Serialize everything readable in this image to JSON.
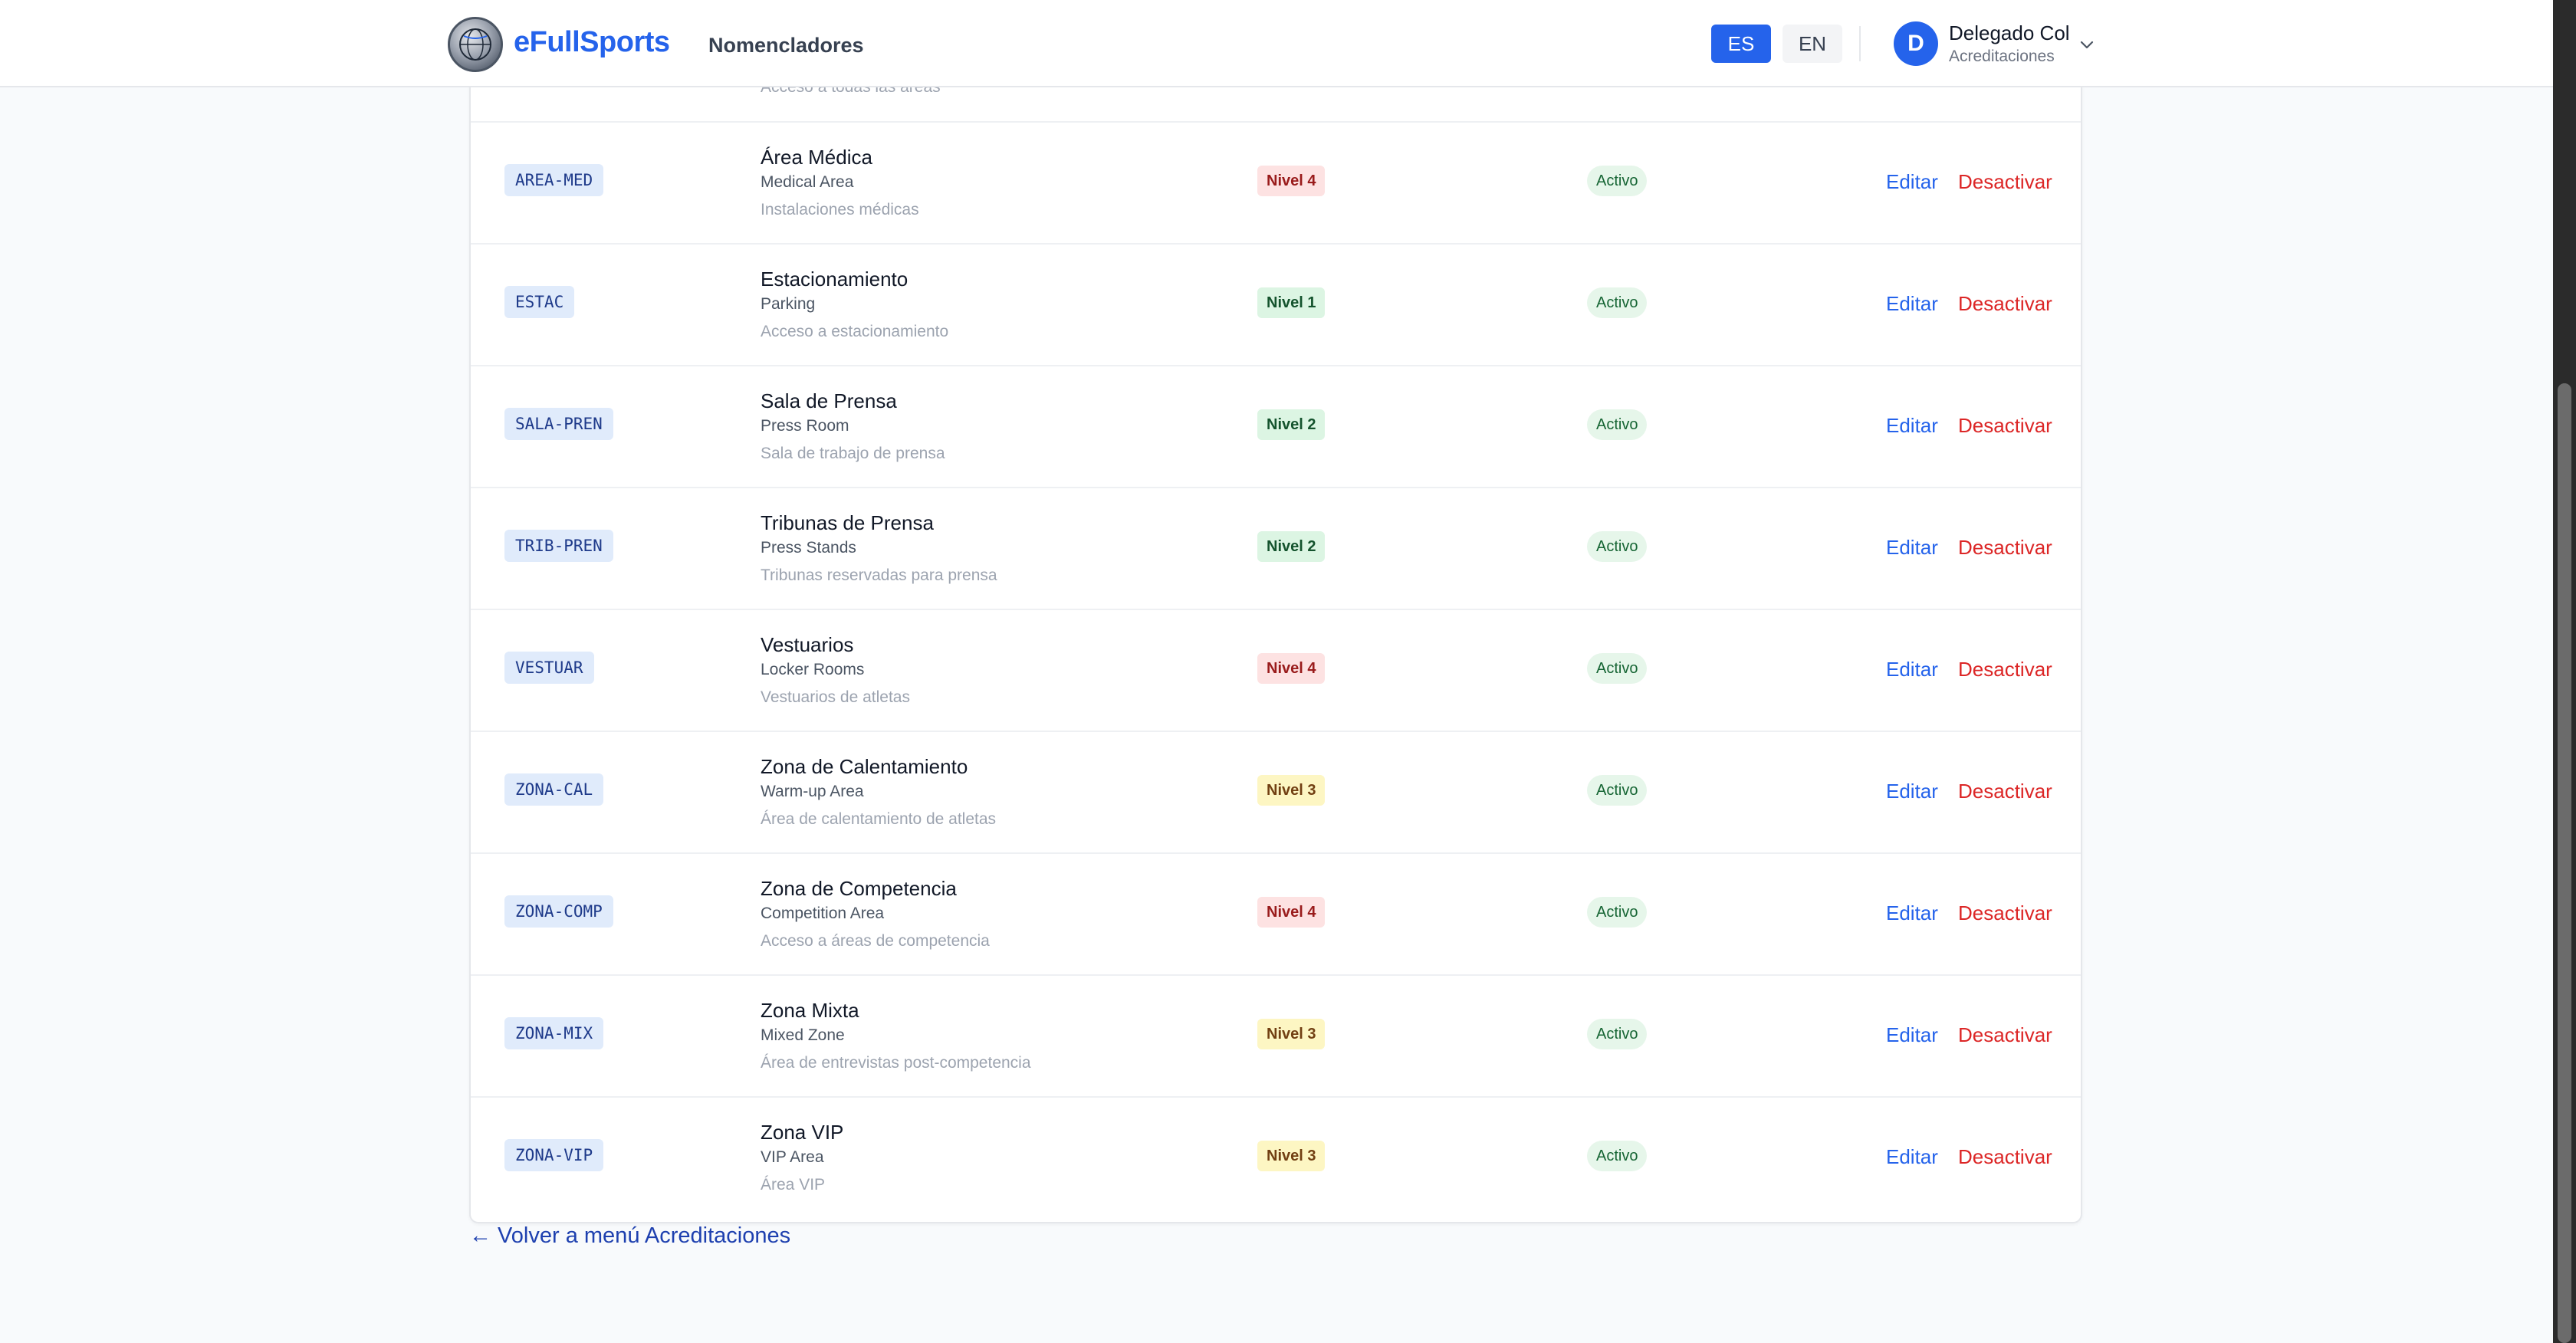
{
  "header": {
    "brand": "eFullSports",
    "nav": [
      "Nomencladores"
    ],
    "languages": [
      {
        "label": "ES",
        "active": true
      },
      {
        "label": "EN",
        "active": false
      }
    ],
    "user": {
      "initial": "D",
      "name": "Delegado Col",
      "role": "Acreditaciones"
    }
  },
  "ghost_row": {
    "description": "Acceso a todas las áreas"
  },
  "actions": {
    "edit": "Editar",
    "deactivate": "Desactivar"
  },
  "rows": [
    {
      "code": "AREA-MED",
      "name": "Área Médica",
      "name_en": "Medical Area",
      "description": "Instalaciones médicas",
      "level": "Nivel 4",
      "level_tone": "red",
      "status": "Activo"
    },
    {
      "code": "ESTAC",
      "name": "Estacionamiento",
      "name_en": "Parking",
      "description": "Acceso a estacionamiento",
      "level": "Nivel 1",
      "level_tone": "green",
      "status": "Activo"
    },
    {
      "code": "SALA-PREN",
      "name": "Sala de Prensa",
      "name_en": "Press Room",
      "description": "Sala de trabajo de prensa",
      "level": "Nivel 2",
      "level_tone": "green",
      "status": "Activo"
    },
    {
      "code": "TRIB-PREN",
      "name": "Tribunas de Prensa",
      "name_en": "Press Stands",
      "description": "Tribunas reservadas para prensa",
      "level": "Nivel 2",
      "level_tone": "green",
      "status": "Activo"
    },
    {
      "code": "VESTUAR",
      "name": "Vestuarios",
      "name_en": "Locker Rooms",
      "description": "Vestuarios de atletas",
      "level": "Nivel 4",
      "level_tone": "red",
      "status": "Activo"
    },
    {
      "code": "ZONA-CAL",
      "name": "Zona de Calentamiento",
      "name_en": "Warm-up Area",
      "description": "Área de calentamiento de atletas",
      "level": "Nivel 3",
      "level_tone": "yellow",
      "status": "Activo"
    },
    {
      "code": "ZONA-COMP",
      "name": "Zona de Competencia",
      "name_en": "Competition Area",
      "description": "Acceso a áreas de competencia",
      "level": "Nivel 4",
      "level_tone": "red",
      "status": "Activo"
    },
    {
      "code": "ZONA-MIX",
      "name": "Zona Mixta",
      "name_en": "Mixed Zone",
      "description": "Área de entrevistas post-competencia",
      "level": "Nivel 3",
      "level_tone": "yellow",
      "status": "Activo"
    },
    {
      "code": "ZONA-VIP",
      "name": "Zona VIP",
      "name_en": "VIP Area",
      "description": "Área VIP",
      "level": "Nivel 3",
      "level_tone": "yellow",
      "status": "Activo"
    }
  ],
  "level_colors": {
    "red": {
      "bg": "#fde2e2",
      "fg": "#991b1b"
    },
    "green": {
      "bg": "#dcf5e3",
      "fg": "#14532d"
    },
    "yellow": {
      "bg": "#fdf6c3",
      "fg": "#713f12"
    }
  },
  "footer": {
    "back_link": "← Volver a menú Acreditaciones"
  },
  "colors": {
    "primary": "#2563eb",
    "danger": "#dc2626",
    "success_bg": "#e6f6ea"
  }
}
